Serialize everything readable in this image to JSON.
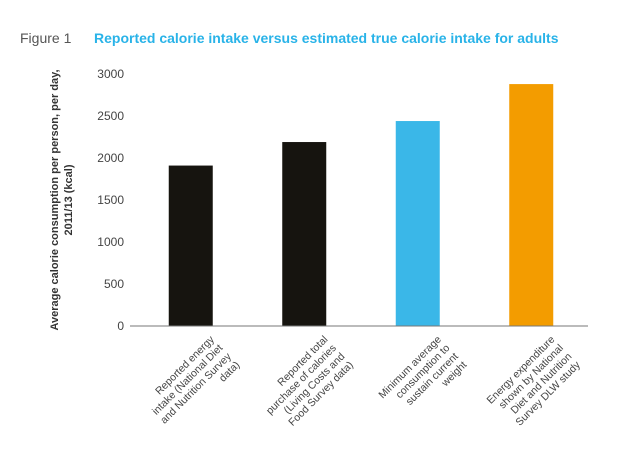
{
  "header": {
    "figure_label": "Figure 1"
  },
  "chart_data": {
    "type": "bar",
    "title": "Reported calorie intake versus estimated true calorie intake for adults",
    "ylabel_lines": [
      "Average calorie consumption per person, per day,",
      "2011/13 (kcal)"
    ],
    "xlabel": "",
    "ylim": [
      0,
      3000
    ],
    "yticks": [
      0,
      500,
      1000,
      1500,
      2000,
      2500,
      3000
    ],
    "categories": [
      [
        "Reported energy",
        "intake (National Diet",
        "and Nutrition Survey",
        "data)"
      ],
      [
        "Reported total",
        "purchase of calories",
        "(Living Costs and",
        "Food Survey data)"
      ],
      [
        "Minimum average",
        "consumption to",
        "sustain current",
        "weight"
      ],
      [
        "Energy expenditure",
        "shown by National",
        "Diet and Nutrition",
        "Survey DLW study"
      ]
    ],
    "values": [
      1910,
      2190,
      2440,
      2880
    ],
    "colors": [
      "#16140f",
      "#16140f",
      "#3ab7e8",
      "#f39c00"
    ],
    "grid": false,
    "legend": "none"
  }
}
